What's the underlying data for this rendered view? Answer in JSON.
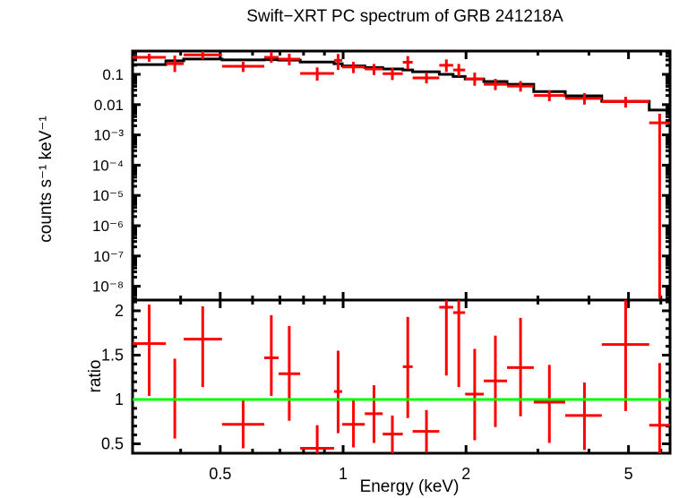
{
  "figure": {
    "title": "Swift−XRT PC spectrum of GRB 241218A",
    "background": "#ffffff",
    "frame_color": "#000000",
    "data_color": "#ff0000",
    "model_color": "#000000",
    "ratio_line_color": "#00ff00"
  },
  "chart_data": [
    {
      "type": "scatter",
      "name": "spectrum-panel",
      "ylabel": "counts s⁻¹ keV⁻¹",
      "xscale": "log",
      "yscale": "log",
      "xlim": [
        0.305,
        6.32
      ],
      "ylim": [
        3.5e-09,
        0.588
      ],
      "grid": false,
      "x_major_ticks": [
        0.5,
        1,
        2,
        5
      ],
      "x_minor_ticks": [
        0.4,
        0.6,
        0.7,
        0.8,
        0.9,
        3,
        4,
        6
      ],
      "y_major_ticks": [
        {
          "v": 0.1,
          "label": "0.1"
        },
        {
          "v": 0.01,
          "label": "0.01"
        },
        {
          "v": 0.001,
          "label": "10⁻³"
        },
        {
          "v": 0.0001,
          "label": "10⁻⁴"
        },
        {
          "v": 1e-05,
          "label": "10⁻⁵"
        },
        {
          "v": 1e-06,
          "label": "10⁻⁶"
        },
        {
          "v": 1e-07,
          "label": "10⁻⁷"
        },
        {
          "v": 1e-08,
          "label": "10⁻⁸"
        }
      ],
      "points": [
        {
          "x": 0.335,
          "x_lo": 0.305,
          "x_hi": 0.368,
          "y": 0.365,
          "y_lo": 0.26,
          "y_hi": 0.48
        },
        {
          "x": 0.387,
          "x_lo": 0.368,
          "x_hi": 0.407,
          "y": 0.225,
          "y_lo": 0.12,
          "y_hi": 0.42
        },
        {
          "x": 0.453,
          "x_lo": 0.407,
          "x_hi": 0.505,
          "y": 0.44,
          "y_lo": 0.32,
          "y_hi": 0.58
        },
        {
          "x": 0.569,
          "x_lo": 0.505,
          "x_hi": 0.641,
          "y": 0.185,
          "y_lo": 0.12,
          "y_hi": 0.26
        },
        {
          "x": 0.667,
          "x_lo": 0.641,
          "x_hi": 0.695,
          "y": 0.365,
          "y_lo": 0.24,
          "y_hi": 0.55
        },
        {
          "x": 0.738,
          "x_lo": 0.695,
          "x_hi": 0.785,
          "y": 0.318,
          "y_lo": 0.2,
          "y_hi": 0.48
        },
        {
          "x": 0.864,
          "x_lo": 0.785,
          "x_hi": 0.95,
          "y": 0.107,
          "y_lo": 0.062,
          "y_hi": 0.17
        },
        {
          "x": 0.972,
          "x_lo": 0.95,
          "x_hi": 0.995,
          "y": 0.29,
          "y_lo": 0.14,
          "y_hi": 0.47
        },
        {
          "x": 1.06,
          "x_lo": 0.995,
          "x_hi": 1.13,
          "y": 0.175,
          "y_lo": 0.11,
          "y_hi": 0.26
        },
        {
          "x": 1.19,
          "x_lo": 1.13,
          "x_hi": 1.25,
          "y": 0.15,
          "y_lo": 0.095,
          "y_hi": 0.22
        },
        {
          "x": 1.32,
          "x_lo": 1.25,
          "x_hi": 1.4,
          "y": 0.105,
          "y_lo": 0.065,
          "y_hi": 0.16
        },
        {
          "x": 1.44,
          "x_lo": 1.4,
          "x_hi": 1.48,
          "y": 0.25,
          "y_lo": 0.15,
          "y_hi": 0.4
        },
        {
          "x": 1.6,
          "x_lo": 1.48,
          "x_hi": 1.72,
          "y": 0.076,
          "y_lo": 0.05,
          "y_hi": 0.115
        },
        {
          "x": 1.79,
          "x_lo": 1.72,
          "x_hi": 1.86,
          "y": 0.2,
          "y_lo": 0.12,
          "y_hi": 0.31
        },
        {
          "x": 1.92,
          "x_lo": 1.86,
          "x_hi": 1.99,
          "y": 0.14,
          "y_lo": 0.085,
          "y_hi": 0.22
        },
        {
          "x": 2.1,
          "x_lo": 1.99,
          "x_hi": 2.21,
          "y": 0.071,
          "y_lo": 0.042,
          "y_hi": 0.115
        },
        {
          "x": 2.36,
          "x_lo": 2.21,
          "x_hi": 2.52,
          "y": 0.047,
          "y_lo": 0.03,
          "y_hi": 0.071
        },
        {
          "x": 2.72,
          "x_lo": 2.52,
          "x_hi": 2.93,
          "y": 0.041,
          "y_lo": 0.027,
          "y_hi": 0.06
        },
        {
          "x": 3.2,
          "x_lo": 2.93,
          "x_hi": 3.5,
          "y": 0.02,
          "y_lo": 0.013,
          "y_hi": 0.029
        },
        {
          "x": 3.9,
          "x_lo": 3.5,
          "x_hi": 4.3,
          "y": 0.016,
          "y_lo": 0.01,
          "y_hi": 0.024
        },
        {
          "x": 4.92,
          "x_lo": 4.3,
          "x_hi": 5.62,
          "y": 0.0125,
          "y_lo": 0.008,
          "y_hi": 0.018
        },
        {
          "x": 5.96,
          "x_lo": 5.62,
          "x_hi": 6.32,
          "y": 0.0025,
          "y_lo": 4e-09,
          "y_hi": 0.005
        }
      ],
      "model_steps": [
        {
          "x1": 0.305,
          "x2": 0.368,
          "y": 0.21
        },
        {
          "x1": 0.368,
          "x2": 0.407,
          "y": 0.28
        },
        {
          "x1": 0.407,
          "x2": 0.505,
          "y": 0.32
        },
        {
          "x1": 0.505,
          "x2": 0.641,
          "y": 0.3
        },
        {
          "x1": 0.641,
          "x2": 0.695,
          "y": 0.305
        },
        {
          "x1": 0.695,
          "x2": 0.785,
          "y": 0.295
        },
        {
          "x1": 0.785,
          "x2": 0.95,
          "y": 0.255
        },
        {
          "x1": 0.95,
          "x2": 0.995,
          "y": 0.225
        },
        {
          "x1": 0.995,
          "x2": 1.13,
          "y": 0.19
        },
        {
          "x1": 1.13,
          "x2": 1.25,
          "y": 0.168
        },
        {
          "x1": 1.25,
          "x2": 1.4,
          "y": 0.15
        },
        {
          "x1": 1.4,
          "x2": 1.48,
          "y": 0.14
        },
        {
          "x1": 1.48,
          "x2": 1.72,
          "y": 0.122
        },
        {
          "x1": 1.72,
          "x2": 1.86,
          "y": 0.1
        },
        {
          "x1": 1.86,
          "x2": 1.99,
          "y": 0.085
        },
        {
          "x1": 1.99,
          "x2": 2.21,
          "y": 0.07
        },
        {
          "x1": 2.21,
          "x2": 2.52,
          "y": 0.058
        },
        {
          "x1": 2.52,
          "x2": 2.93,
          "y": 0.047
        },
        {
          "x1": 2.93,
          "x2": 3.5,
          "y": 0.027
        },
        {
          "x1": 3.5,
          "x2": 4.3,
          "y": 0.0195
        },
        {
          "x1": 4.3,
          "x2": 5.62,
          "y": 0.0129
        },
        {
          "x1": 5.62,
          "x2": 6.32,
          "y": 0.0066
        }
      ]
    },
    {
      "type": "scatter",
      "name": "ratio-panel",
      "ylabel": "ratio",
      "xlabel": "Energy (keV)",
      "xscale": "log",
      "yscale": "linear",
      "xlim": [
        0.305,
        6.32
      ],
      "ylim": [
        0.394,
        2.121
      ],
      "grid": false,
      "reference_line": 1,
      "x_major_ticks": [
        {
          "v": 0.5,
          "label": "0.5"
        },
        {
          "v": 1,
          "label": "1"
        },
        {
          "v": 2,
          "label": "2"
        },
        {
          "v": 5,
          "label": "5"
        }
      ],
      "x_minor_ticks": [
        0.4,
        0.6,
        0.7,
        0.8,
        0.9,
        3,
        4,
        6
      ],
      "y_major_ticks": [
        {
          "v": 0.5,
          "label": "0.5"
        },
        {
          "v": 1,
          "label": "1"
        },
        {
          "v": 1.5,
          "label": "1.5"
        },
        {
          "v": 2,
          "label": "2"
        }
      ],
      "y_minor_step": 0.1,
      "points": [
        {
          "x": 0.335,
          "x_lo": 0.305,
          "x_hi": 0.368,
          "y": 1.63,
          "y_lo": 1.04,
          "y_hi": 2.07
        },
        {
          "x": 0.387,
          "x_lo": 0.368,
          "x_hi": 0.407,
          "y": 1.0,
          "y_lo": 0.56,
          "y_hi": 1.46
        },
        {
          "x": 0.453,
          "x_lo": 0.407,
          "x_hi": 0.505,
          "y": 1.68,
          "y_lo": 1.14,
          "y_hi": 2.05
        },
        {
          "x": 0.569,
          "x_lo": 0.505,
          "x_hi": 0.641,
          "y": 0.72,
          "y_lo": 0.45,
          "y_hi": 0.99
        },
        {
          "x": 0.667,
          "x_lo": 0.641,
          "x_hi": 0.695,
          "y": 1.47,
          "y_lo": 1.04,
          "y_hi": 1.95
        },
        {
          "x": 0.738,
          "x_lo": 0.695,
          "x_hi": 0.785,
          "y": 1.29,
          "y_lo": 0.76,
          "y_hi": 1.83
        },
        {
          "x": 0.864,
          "x_lo": 0.785,
          "x_hi": 0.95,
          "y": 0.45,
          "y_lo": 0.23,
          "y_hi": 0.71
        },
        {
          "x": 0.972,
          "x_lo": 0.95,
          "x_hi": 0.995,
          "y": 1.09,
          "y_lo": 0.62,
          "y_hi": 1.55
        },
        {
          "x": 1.06,
          "x_lo": 0.995,
          "x_hi": 1.13,
          "y": 0.72,
          "y_lo": 0.46,
          "y_hi": 1.01
        },
        {
          "x": 1.19,
          "x_lo": 1.13,
          "x_hi": 1.25,
          "y": 0.84,
          "y_lo": 0.51,
          "y_hi": 1.16
        },
        {
          "x": 1.32,
          "x_lo": 1.25,
          "x_hi": 1.4,
          "y": 0.61,
          "y_lo": 0.33,
          "y_hi": 0.82
        },
        {
          "x": 1.44,
          "x_lo": 1.4,
          "x_hi": 1.48,
          "y": 1.37,
          "y_lo": 0.79,
          "y_hi": 1.93
        },
        {
          "x": 1.6,
          "x_lo": 1.48,
          "x_hi": 1.72,
          "y": 0.64,
          "y_lo": 0.4,
          "y_hi": 0.88
        },
        {
          "x": 1.79,
          "x_lo": 1.72,
          "x_hi": 1.86,
          "y": 2.04,
          "y_lo": 1.27,
          "y_hi": 2.12
        },
        {
          "x": 1.92,
          "x_lo": 1.86,
          "x_hi": 1.99,
          "y": 1.98,
          "y_lo": 1.14,
          "y_hi": 2.12
        },
        {
          "x": 2.1,
          "x_lo": 1.99,
          "x_hi": 2.21,
          "y": 1.06,
          "y_lo": 0.54,
          "y_hi": 1.57
        },
        {
          "x": 2.36,
          "x_lo": 2.21,
          "x_hi": 2.52,
          "y": 1.21,
          "y_lo": 0.69,
          "y_hi": 1.72
        },
        {
          "x": 2.72,
          "x_lo": 2.52,
          "x_hi": 2.93,
          "y": 1.36,
          "y_lo": 0.81,
          "y_hi": 1.92
        },
        {
          "x": 3.2,
          "x_lo": 2.93,
          "x_hi": 3.5,
          "y": 0.97,
          "y_lo": 0.51,
          "y_hi": 1.39
        },
        {
          "x": 3.9,
          "x_lo": 3.5,
          "x_hi": 4.3,
          "y": 0.82,
          "y_lo": 0.43,
          "y_hi": 1.19
        },
        {
          "x": 4.92,
          "x_lo": 4.3,
          "x_hi": 5.62,
          "y": 1.62,
          "y_lo": 0.87,
          "y_hi": 2.12
        },
        {
          "x": 5.96,
          "x_lo": 5.62,
          "x_hi": 6.32,
          "y": 0.71,
          "y_lo": 0.38,
          "y_hi": 1.41
        }
      ]
    }
  ]
}
